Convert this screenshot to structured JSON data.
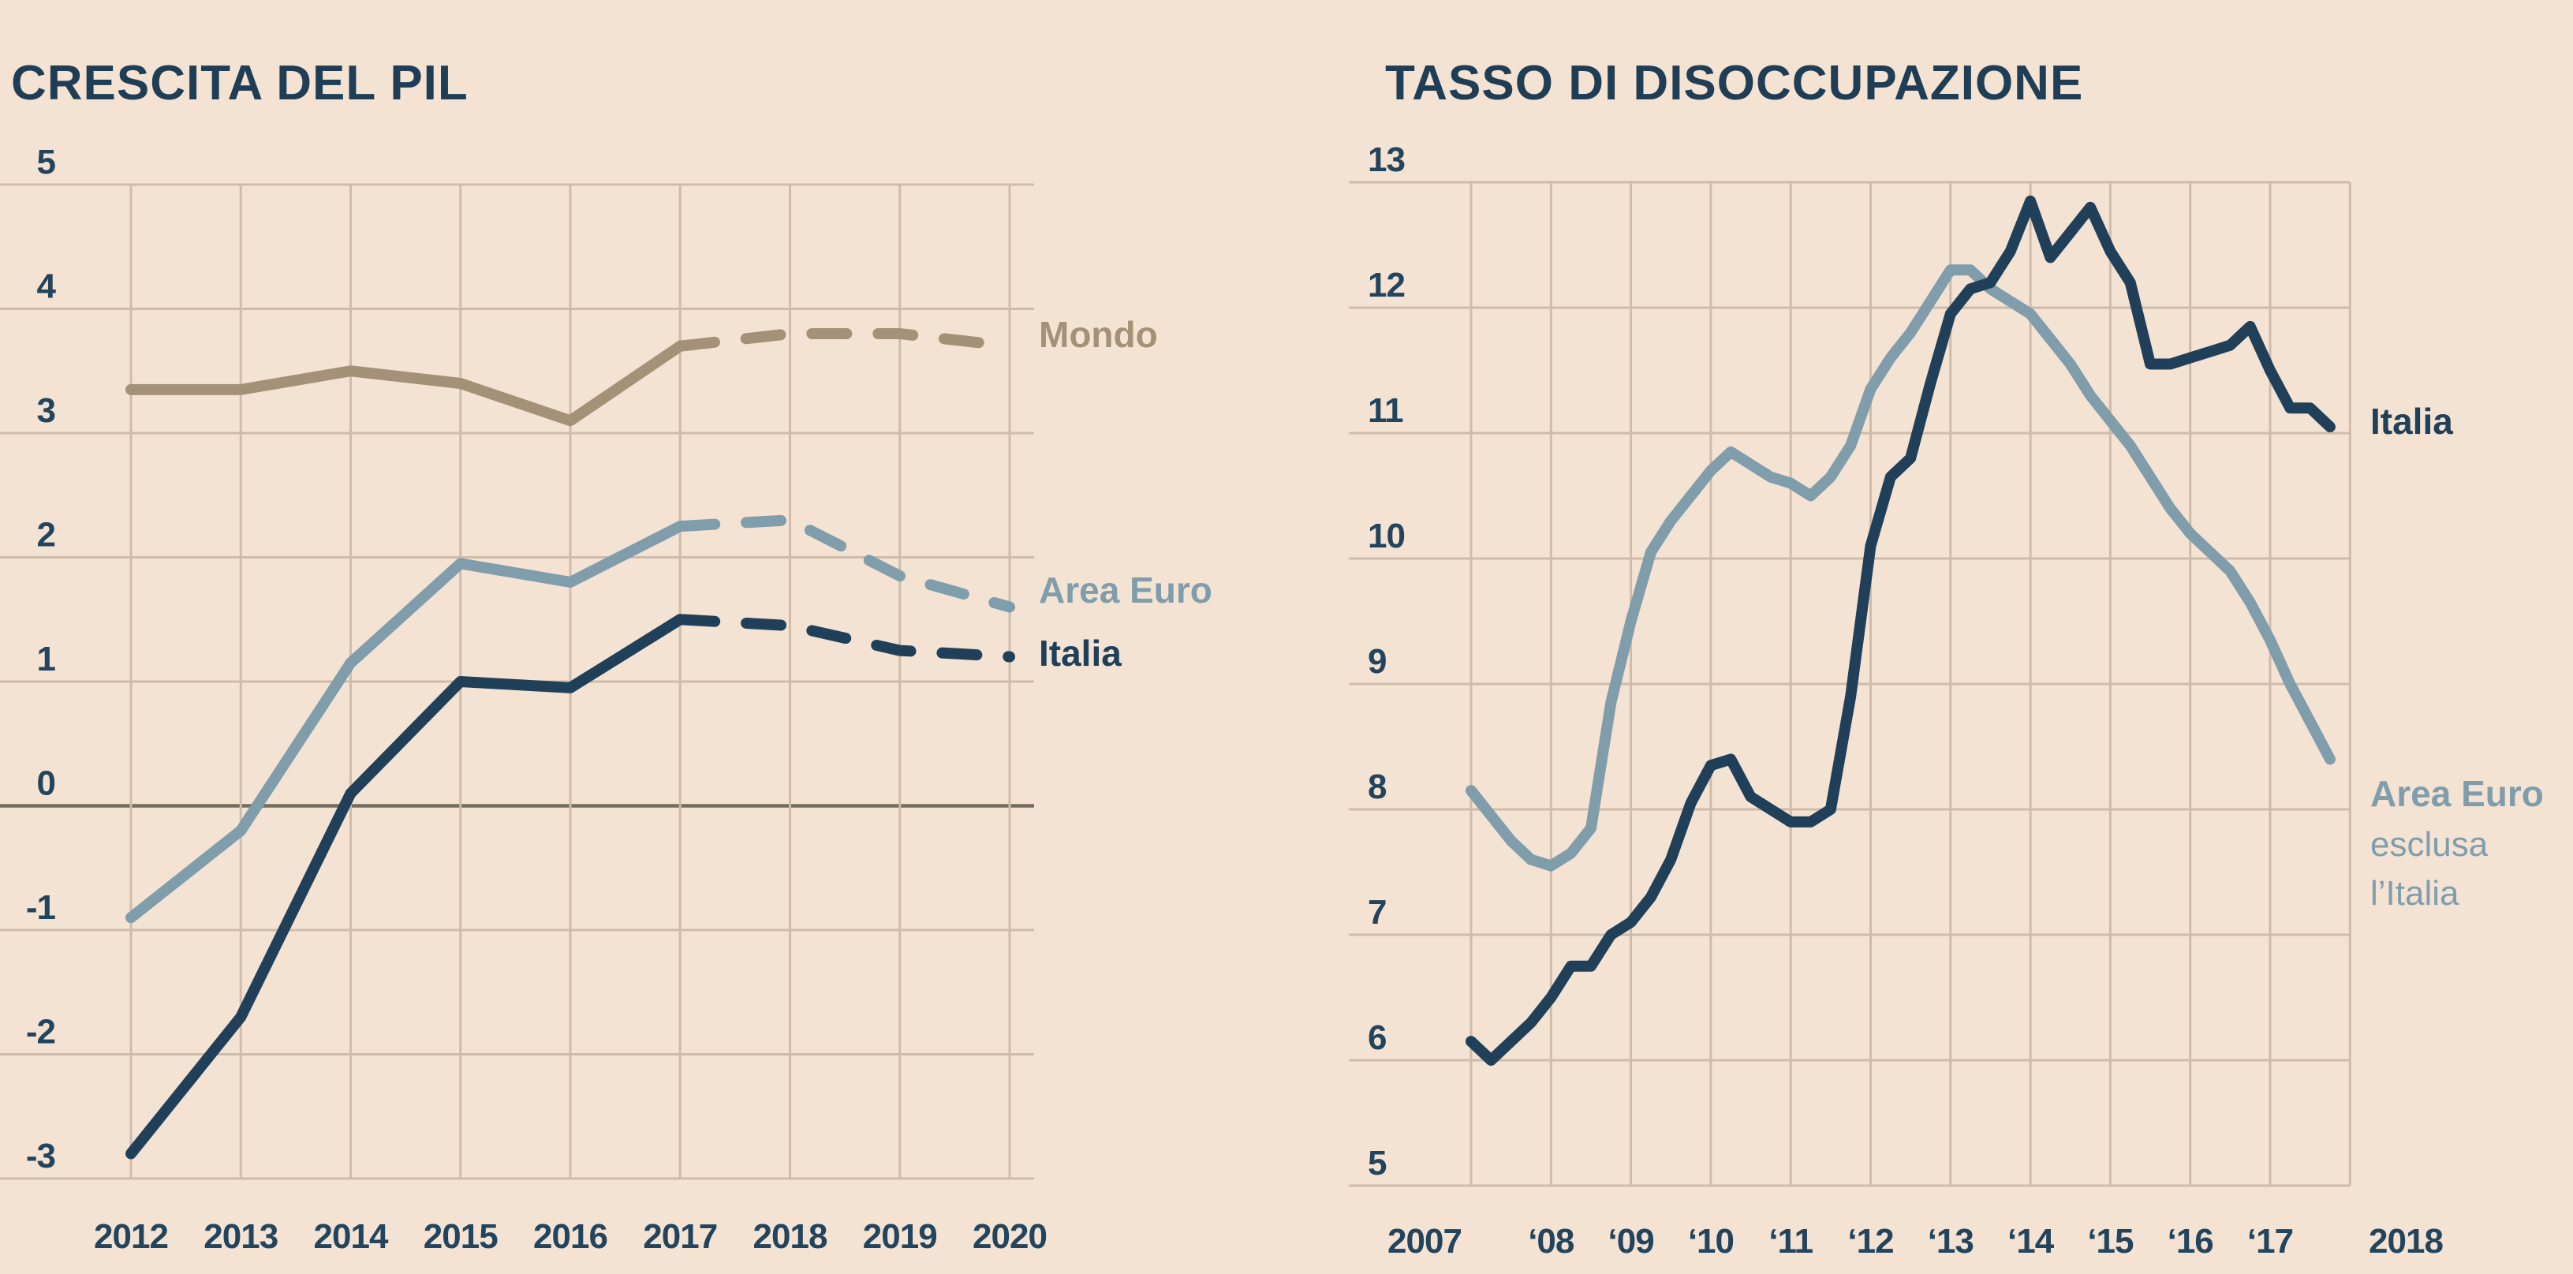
{
  "page": {
    "background_color": "#f4e3d3",
    "accent_navy": "#1f4058",
    "accent_gray_blue": "#7f9dab",
    "accent_tan": "#a49178",
    "gridline_color": "#cfbbaa",
    "zero_line_color": "#756d5f",
    "text_color": "#1f3e56"
  },
  "chart_data": [
    {
      "type": "line",
      "title": "CRESCITA DEL PIL",
      "x": [
        2012,
        2013,
        2014,
        2015,
        2016,
        2017,
        2018,
        2019,
        2020
      ],
      "x_tick_labels": [
        "2012",
        "2013",
        "2014",
        "2015",
        "2016",
        "2017",
        "2018",
        "2019",
        "2020"
      ],
      "y_ticks": [
        5,
        4,
        3,
        2,
        1,
        0,
        -1,
        -2,
        -3
      ],
      "ylim": [
        -3,
        5
      ],
      "xlim": [
        2012,
        2020
      ],
      "grid": true,
      "zero_line": true,
      "forecast_dash_from_x": 2017,
      "legend_position": "right-of-line-ends",
      "series": [
        {
          "name": "Mondo",
          "color": "#a49178",
          "values": [
            3.35,
            3.35,
            3.5,
            3.4,
            3.1,
            3.7,
            3.8,
            3.8,
            3.7
          ]
        },
        {
          "name": "Area Euro",
          "color": "#7f9dab",
          "values": [
            -0.9,
            -0.2,
            1.15,
            1.95,
            1.8,
            2.25,
            2.3,
            1.85,
            1.6
          ]
        },
        {
          "name": "Italia",
          "color": "#1f4058",
          "values": [
            -2.8,
            -1.7,
            0.1,
            1.0,
            0.95,
            1.5,
            1.45,
            1.25,
            1.2
          ]
        }
      ]
    },
    {
      "type": "line",
      "title": "TASSO DI DISOCCUPAZIONE",
      "x_start": 2007,
      "x_step": 0.25,
      "x_tick_years": [
        2007,
        2008,
        2009,
        2010,
        2011,
        2012,
        2013,
        2014,
        2015,
        2016,
        2017,
        2018
      ],
      "x_tick_labels": [
        "2007",
        "‘08",
        "‘09",
        "‘10",
        "‘11",
        "‘12",
        "‘13",
        "‘14",
        "‘15",
        "‘16",
        "‘17",
        "2018"
      ],
      "y_ticks": [
        13,
        12,
        11,
        10,
        9,
        8,
        7,
        6,
        5
      ],
      "ylim": [
        5,
        13
      ],
      "xlim": [
        2007,
        2018
      ],
      "grid": true,
      "zero_line": false,
      "legend_position": "right-of-line-ends",
      "series": [
        {
          "name": "Italia",
          "color": "#1f4058",
          "values": [
            6.15,
            6.0,
            6.15,
            6.3,
            6.5,
            6.75,
            6.75,
            7.0,
            7.1,
            7.3,
            7.6,
            8.05,
            8.35,
            8.4,
            8.1,
            8.0,
            7.9,
            7.9,
            8.0,
            8.9,
            10.1,
            10.65,
            10.8,
            11.4,
            11.95,
            12.15,
            12.2,
            12.45,
            12.85,
            12.4,
            12.6,
            12.8,
            12.45,
            12.2,
            11.55,
            11.55,
            11.6,
            11.65,
            11.7,
            11.85,
            11.5,
            11.2,
            11.2,
            11.05
          ]
        },
        {
          "name": "Area Euro",
          "sublabel_line1": "esclusa",
          "sublabel_line2": "l’Italia",
          "color": "#7f9dab",
          "values": [
            8.15,
            7.95,
            7.75,
            7.6,
            7.55,
            7.65,
            7.85,
            8.85,
            9.5,
            10.05,
            10.3,
            10.5,
            10.7,
            10.85,
            10.75,
            10.65,
            10.6,
            10.5,
            10.65,
            10.9,
            11.35,
            11.6,
            11.8,
            12.05,
            12.3,
            12.3,
            12.15,
            12.05,
            11.95,
            11.75,
            11.55,
            11.3,
            11.1,
            10.9,
            10.65,
            10.4,
            10.2,
            10.05,
            9.9,
            9.65,
            9.35,
            9.0,
            8.7,
            8.4
          ]
        }
      ]
    }
  ]
}
